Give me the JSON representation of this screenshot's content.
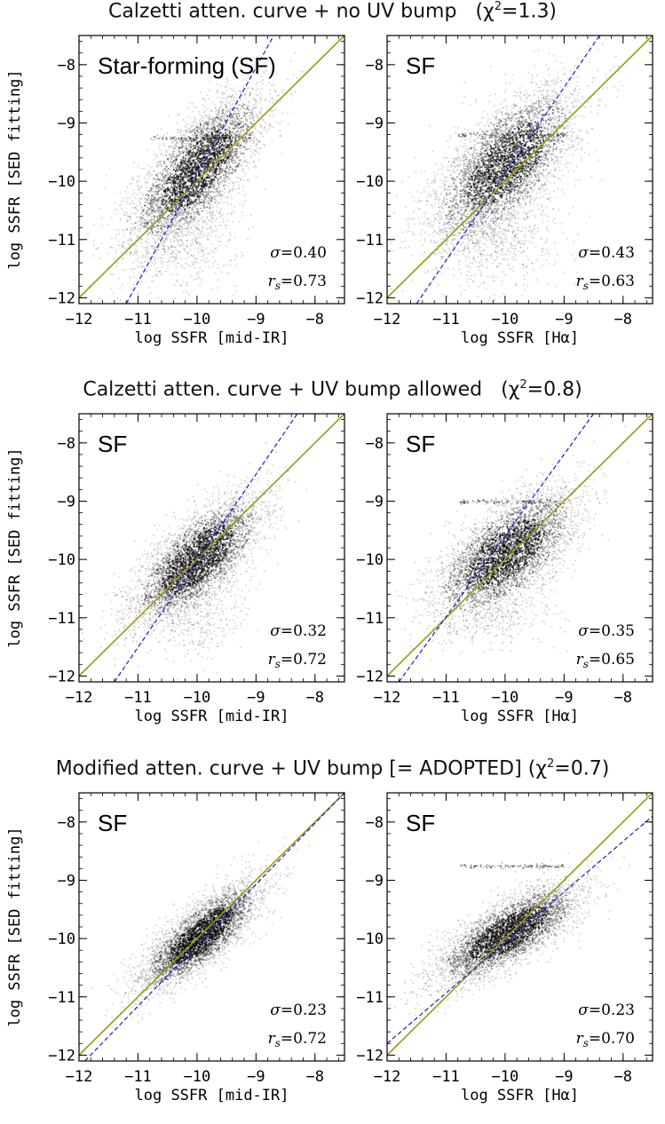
{
  "rows": [
    {
      "title_main": "Calzetti atten. curve + no UV bump",
      "title_chi": "(χ",
      "title_chi_sup": "2",
      "title_chi_val": "=1.3)"
    },
    {
      "title_main": "Calzetti atten. curve + UV bump allowed",
      "title_chi": "(χ",
      "title_chi_sup": "2",
      "title_chi_val": "=0.8)"
    },
    {
      "title_main": "Modified atten. curve + UV bump [= ADOPTED]",
      "title_chi": "(χ",
      "title_chi_sup": "2",
      "title_chi_val": "=0.7)"
    }
  ],
  "colors": {
    "one_to_one": "#9a9a10",
    "fit_line": "#1a1ad0",
    "points": "#000000"
  },
  "chart_data": [
    {
      "type": "scatter",
      "panel": "row1-left",
      "label": "Star-forming (SF)",
      "xlabel": "log SSFR [mid-IR]",
      "ylabel": "log SSFR [SED fitting]",
      "xlim": [
        -12,
        -7.5
      ],
      "ylim": [
        -12.1,
        -7.5
      ],
      "xticks": [
        -12,
        -11,
        -10,
        -9,
        -8
      ],
      "yticks": [
        -12,
        -11,
        -10,
        -9,
        -8
      ],
      "sigma": "0.40",
      "rs": "0.73",
      "one_to_one": [
        [
          -12,
          -12
        ],
        [
          -7.5,
          -7.5
        ]
      ],
      "fit_line": [
        [
          -11.2,
          -12.1
        ],
        [
          -8.7,
          -7.5
        ]
      ],
      "density": {
        "cx": -10.0,
        "cy": -9.8,
        "sx": 0.55,
        "sy": 0.65,
        "rho": 0.72,
        "n": 4200,
        "extra_cloud": {
          "cx": -10.3,
          "cy": -10.9,
          "sx": 0.5,
          "sy": 0.5,
          "n": 600
        },
        "stripe_y": -9.25
      }
    },
    {
      "type": "scatter",
      "panel": "row1-right",
      "label": "SF",
      "xlabel": "log SSFR [Hα]",
      "ylabel": "",
      "xlim": [
        -12,
        -7.5
      ],
      "ylim": [
        -12.1,
        -7.5
      ],
      "xticks": [
        -12,
        -11,
        -10,
        -9,
        -8
      ],
      "yticks": [
        -12,
        -11,
        -10,
        -9,
        -8
      ],
      "sigma": "0.43",
      "rs": "0.63",
      "one_to_one": [
        [
          -12,
          -12
        ],
        [
          -7.5,
          -7.5
        ]
      ],
      "fit_line": [
        [
          -11.5,
          -12.1
        ],
        [
          -8.4,
          -7.5
        ]
      ],
      "density": {
        "cx": -10.0,
        "cy": -9.7,
        "sx": 0.6,
        "sy": 0.65,
        "rho": 0.65,
        "n": 4200,
        "extra_cloud": {
          "cx": -10.2,
          "cy": -10.9,
          "sx": 0.55,
          "sy": 0.45,
          "n": 700
        },
        "stripe_y": -9.2
      }
    },
    {
      "type": "scatter",
      "panel": "row2-left",
      "label": "SF",
      "xlabel": "log SSFR [mid-IR]",
      "ylabel": "log SSFR [SED fitting]",
      "xlim": [
        -12,
        -7.5
      ],
      "ylim": [
        -12.1,
        -7.5
      ],
      "xticks": [
        -12,
        -11,
        -10,
        -9,
        -8
      ],
      "yticks": [
        -12,
        -11,
        -10,
        -9,
        -8
      ],
      "sigma": "0.32",
      "rs": "0.72",
      "one_to_one": [
        [
          -12,
          -12
        ],
        [
          -7.5,
          -7.5
        ]
      ],
      "fit_line": [
        [
          -11.4,
          -12.1
        ],
        [
          -8.3,
          -7.5
        ]
      ],
      "density": {
        "cx": -10.0,
        "cy": -10.0,
        "sx": 0.55,
        "sy": 0.55,
        "rho": 0.72,
        "n": 4200,
        "extra_cloud": {
          "cx": -10.0,
          "cy": -11.0,
          "sx": 0.4,
          "sy": 0.35,
          "n": 300
        },
        "stripe_y": null
      }
    },
    {
      "type": "scatter",
      "panel": "row2-right",
      "label": "SF",
      "xlabel": "log SSFR [Hα]",
      "ylabel": "",
      "xlim": [
        -12,
        -7.5
      ],
      "ylim": [
        -12.1,
        -7.5
      ],
      "xticks": [
        -12,
        -11,
        -10,
        -9,
        -8
      ],
      "yticks": [
        -12,
        -11,
        -10,
        -9,
        -8
      ],
      "sigma": "0.35",
      "rs": "0.65",
      "one_to_one": [
        [
          -12,
          -12
        ],
        [
          -7.5,
          -7.5
        ]
      ],
      "fit_line": [
        [
          -11.8,
          -12.1
        ],
        [
          -8.5,
          -7.5
        ]
      ],
      "density": {
        "cx": -10.0,
        "cy": -9.9,
        "sx": 0.6,
        "sy": 0.55,
        "rho": 0.65,
        "n": 4200,
        "extra_cloud": {
          "cx": -10.1,
          "cy": -10.9,
          "sx": 0.45,
          "sy": 0.35,
          "n": 300
        },
        "stripe_y": -9.0
      }
    },
    {
      "type": "scatter",
      "panel": "row3-left",
      "label": "SF",
      "xlabel": "log SSFR [mid-IR]",
      "ylabel": "log SSFR [SED fitting]",
      "xlim": [
        -12,
        -7.5
      ],
      "ylim": [
        -12.1,
        -7.5
      ],
      "xticks": [
        -12,
        -11,
        -10,
        -9,
        -8
      ],
      "yticks": [
        -12,
        -11,
        -10,
        -9,
        -8
      ],
      "sigma": "0.23",
      "rs": "0.72",
      "one_to_one": [
        [
          -12,
          -12
        ],
        [
          -7.5,
          -7.5
        ]
      ],
      "fit_line": [
        [
          -11.9,
          -12.1
        ],
        [
          -7.5,
          -7.5
        ]
      ],
      "density": {
        "cx": -9.95,
        "cy": -9.95,
        "sx": 0.5,
        "sy": 0.45,
        "rho": 0.8,
        "n": 4200,
        "extra_cloud": null,
        "stripe_y": null
      }
    },
    {
      "type": "scatter",
      "panel": "row3-right",
      "label": "SF",
      "xlabel": "log SSFR [Hα]",
      "ylabel": "",
      "xlim": [
        -12,
        -7.5
      ],
      "ylim": [
        -12.1,
        -7.5
      ],
      "xticks": [
        -12,
        -11,
        -10,
        -9,
        -8
      ],
      "yticks": [
        -12,
        -11,
        -10,
        -9,
        -8
      ],
      "sigma": "0.23",
      "rs": "0.70",
      "one_to_one": [
        [
          -12,
          -12
        ],
        [
          -7.5,
          -7.5
        ]
      ],
      "fit_line": [
        [
          -12,
          -11.8
        ],
        [
          -7.5,
          -7.9
        ]
      ],
      "density": {
        "cx": -9.95,
        "cy": -9.9,
        "sx": 0.6,
        "sy": 0.42,
        "rho": 0.75,
        "n": 4200,
        "extra_cloud": null,
        "stripe_y": -8.75
      }
    }
  ]
}
